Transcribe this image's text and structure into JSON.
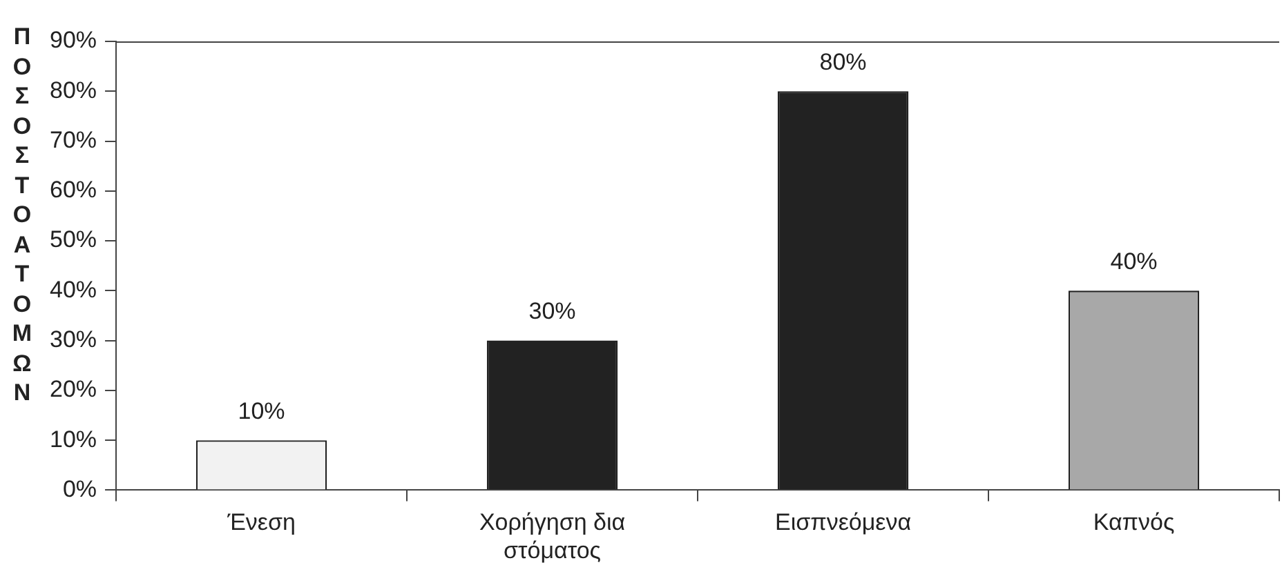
{
  "chart_data": {
    "type": "bar",
    "ylabel": "ΠΟΣΟΣΤΟ ΑΤΟΜΩΝ",
    "categories": [
      "Ένεση",
      "Χορήγηση δια στόματος",
      "Εισπνεόμενα",
      "Καπνός"
    ],
    "values": [
      10,
      30,
      80,
      40
    ],
    "colors": [
      "#f2f2f2",
      "#222222",
      "#222222",
      "#a8a8a8"
    ],
    "value_labels": [
      "10%",
      "30%",
      "80%",
      "40%"
    ],
    "ylim": [
      0,
      90
    ],
    "yticks": [
      {
        "value": 0,
        "label": "0%"
      },
      {
        "value": 10,
        "label": "10%"
      },
      {
        "value": 20,
        "label": "20%"
      },
      {
        "value": 30,
        "label": "30%"
      },
      {
        "value": 40,
        "label": "40%"
      },
      {
        "value": 50,
        "label": "50%"
      },
      {
        "value": 60,
        "label": "60%"
      },
      {
        "value": 70,
        "label": "70%"
      },
      {
        "value": 80,
        "label": "80%"
      },
      {
        "value": 90,
        "label": "90%"
      }
    ],
    "grid": false,
    "legend": false
  }
}
